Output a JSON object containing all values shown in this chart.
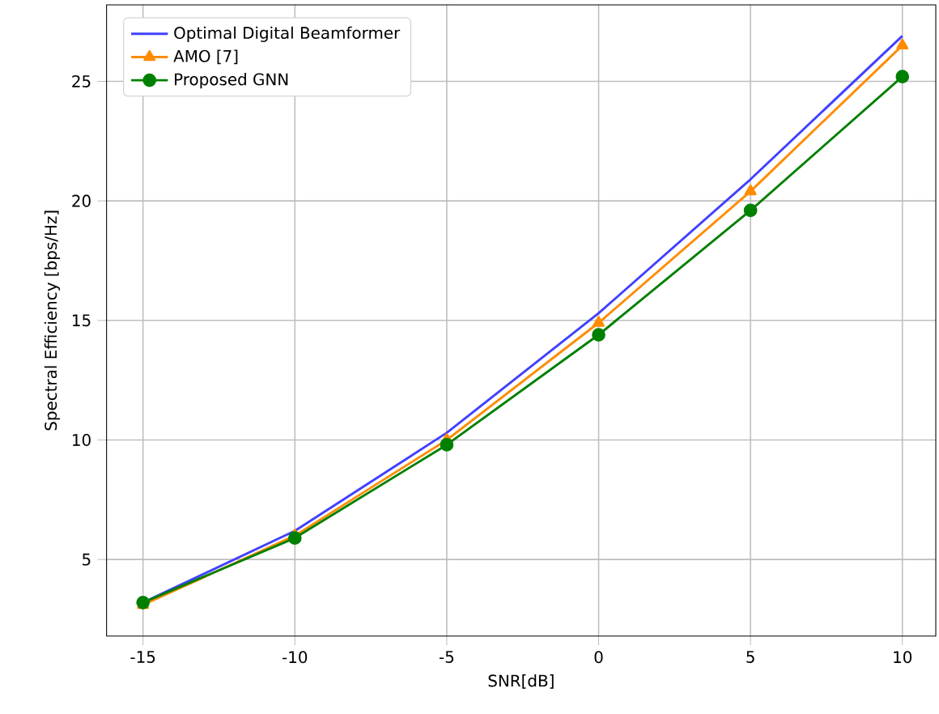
{
  "chart_data": {
    "type": "line",
    "xlabel": "SNR[dB]",
    "ylabel": "Spectral Efficiency [bps/Hz]",
    "x": [
      -15,
      -10,
      -5,
      0,
      5,
      10
    ],
    "series": [
      {
        "name": "Optimal Digital Beamformer",
        "color": "#4040ff",
        "marker": "none",
        "values": [
          3.2,
          6.2,
          10.3,
          15.3,
          20.9,
          26.9
        ]
      },
      {
        "name": "AMO [7]",
        "color": "#ff8c00",
        "marker": "triangle",
        "values": [
          3.1,
          6.0,
          10.0,
          14.9,
          20.4,
          26.5
        ]
      },
      {
        "name": "Proposed GNN",
        "color": "#008000",
        "marker": "circle",
        "values": [
          3.2,
          5.9,
          9.8,
          14.4,
          19.6,
          25.2
        ]
      }
    ],
    "xlim": [
      -16.2,
      11.1
    ],
    "ylim": [
      1.8,
      28.2
    ],
    "xticks": [
      -15,
      -10,
      -5,
      0,
      5,
      10
    ],
    "yticks": [
      5,
      10,
      15,
      20,
      25
    ],
    "grid": true,
    "legend": "top left",
    "line_style": "solid"
  }
}
